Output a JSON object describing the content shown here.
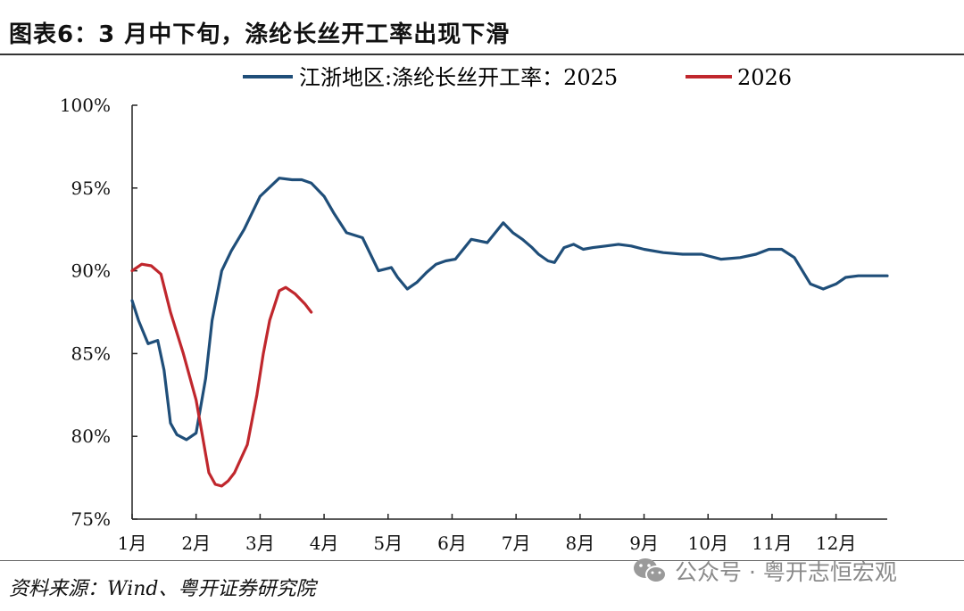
{
  "header": {
    "title": "图表6：3 月中下旬，涤纶长丝开工率出现下滑"
  },
  "footer": {
    "source": "资料来源：Wind、粤开证券研究院",
    "watermark": "公众号 · 粤开志恒宏观"
  },
  "icons": {
    "watermark": "wechat-icon"
  },
  "colors": {
    "series_2025": "#1f4e79",
    "series_2026": "#c0272d",
    "axis": "#222222"
  },
  "chart_data": {
    "type": "line",
    "title": "图表6：3 月中下旬，涤纶长丝开工率出现下滑",
    "xlabel": "",
    "ylabel": "",
    "ylim": [
      75,
      100
    ],
    "y_ticks": [
      "75%",
      "80%",
      "85%",
      "90%",
      "95%",
      "100%"
    ],
    "y_tick_values": [
      75,
      80,
      85,
      90,
      95,
      100
    ],
    "x_range": [
      1,
      12.8
    ],
    "x_ticks": [
      "1月",
      "2月",
      "3月",
      "4月",
      "5月",
      "6月",
      "7月",
      "8月",
      "9月",
      "10月",
      "11月",
      "12月"
    ],
    "x_tick_values": [
      1,
      2,
      3,
      4,
      5,
      6,
      7,
      8,
      9,
      10,
      11,
      12
    ],
    "legend": "top",
    "grid": false,
    "series": [
      {
        "name": "江浙地区:涤纶长丝开工率：2025",
        "x": [
          1.0,
          1.1,
          1.25,
          1.4,
          1.5,
          1.6,
          1.7,
          1.85,
          2.0,
          2.15,
          2.25,
          2.4,
          2.55,
          2.75,
          3.0,
          3.3,
          3.5,
          3.65,
          3.8,
          4.0,
          4.15,
          4.35,
          4.6,
          4.85,
          5.05,
          5.15,
          5.3,
          5.45,
          5.6,
          5.75,
          5.9,
          6.05,
          6.3,
          6.55,
          6.8,
          6.95,
          7.1,
          7.25,
          7.35,
          7.5,
          7.6,
          7.75,
          7.9,
          8.05,
          8.2,
          8.4,
          8.6,
          8.8,
          9.0,
          9.3,
          9.6,
          9.9,
          10.2,
          10.5,
          10.75,
          10.95,
          11.15,
          11.35,
          11.6,
          11.8,
          12.0,
          12.15,
          12.35,
          12.6,
          12.8
        ],
        "values": [
          88.2,
          87.0,
          85.6,
          85.8,
          84.0,
          80.8,
          80.1,
          79.8,
          80.2,
          83.5,
          87.0,
          90.0,
          91.2,
          92.5,
          94.5,
          95.6,
          95.5,
          95.5,
          95.3,
          94.5,
          93.5,
          92.3,
          92.0,
          90.0,
          90.2,
          89.6,
          88.9,
          89.3,
          89.9,
          90.4,
          90.6,
          90.7,
          91.9,
          91.7,
          92.9,
          92.3,
          91.9,
          91.4,
          91.0,
          90.6,
          90.5,
          91.4,
          91.6,
          91.3,
          91.4,
          91.5,
          91.6,
          91.5,
          91.3,
          91.1,
          91.0,
          91.0,
          90.7,
          90.8,
          91.0,
          91.3,
          91.3,
          90.8,
          89.2,
          88.9,
          89.2,
          89.6,
          89.7,
          89.7,
          89.7
        ],
        "color": "#1f4e79"
      },
      {
        "name": "2026",
        "x": [
          1.0,
          1.15,
          1.3,
          1.45,
          1.6,
          1.8,
          2.0,
          2.1,
          2.2,
          2.3,
          2.4,
          2.5,
          2.6,
          2.8,
          2.95,
          3.05,
          3.15,
          3.3,
          3.4,
          3.55,
          3.7,
          3.8
        ],
        "values": [
          90.0,
          90.4,
          90.3,
          89.8,
          87.5,
          85.0,
          82.2,
          80.0,
          77.8,
          77.1,
          77.0,
          77.3,
          77.8,
          79.5,
          82.5,
          85.0,
          87.0,
          88.8,
          89.0,
          88.6,
          88.0,
          87.5
        ],
        "color": "#c0272d"
      }
    ]
  }
}
